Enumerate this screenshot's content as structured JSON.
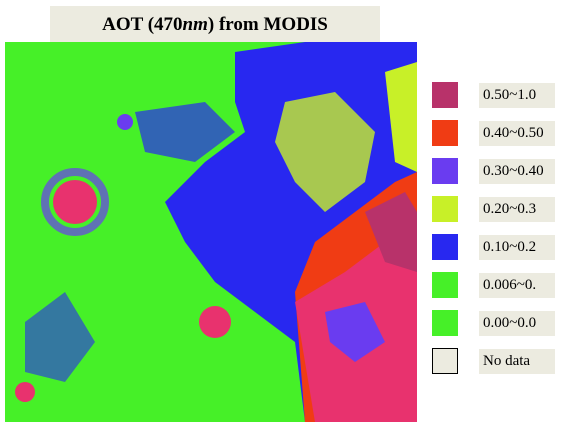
{
  "header": {
    "title": {
      "prefix": "AOT (470",
      "italic": "nm",
      "suffix": ") from MODIS"
    }
  },
  "legend": {
    "items": [
      {
        "label": "0.50~1.0",
        "color": "#b8326a"
      },
      {
        "label": "0.40~0.50",
        "color": "#f03c14"
      },
      {
        "label": "0.30~0.40",
        "color": "#6a3cf0"
      },
      {
        "label": "0.20~0.3",
        "color": "#c8f028"
      },
      {
        "label": "0.10~0.2",
        "color": "#2828f0"
      },
      {
        "label": "0.006~0.",
        "color": "#46f028"
      },
      {
        "label": "0.00~0.0",
        "color": "#46f028"
      },
      {
        "label": "No data",
        "color": "#ecebe0"
      }
    ]
  }
}
